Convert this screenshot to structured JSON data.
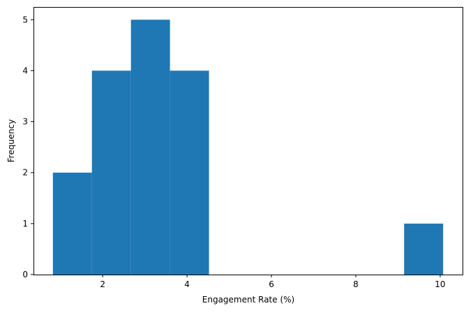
{
  "chart_data": {
    "type": "histogram",
    "title": "",
    "xlabel": "Engagement Rate (%)",
    "ylabel": "Frequency",
    "bin_edges": [
      0.82,
      1.745,
      2.67,
      3.595,
      4.52,
      5.445,
      6.37,
      7.295,
      8.22,
      9.145,
      10.07
    ],
    "values": [
      2,
      4,
      5,
      4,
      0,
      0,
      0,
      0,
      0,
      1
    ],
    "xticks": [
      2,
      4,
      6,
      8,
      10
    ],
    "yticks": [
      0,
      1,
      2,
      3,
      4,
      5
    ],
    "xlim": [
      0.36,
      10.53
    ],
    "ylim": [
      0,
      5.25
    ],
    "bar_color": "#1f77b4",
    "grid": false,
    "legend": null
  }
}
